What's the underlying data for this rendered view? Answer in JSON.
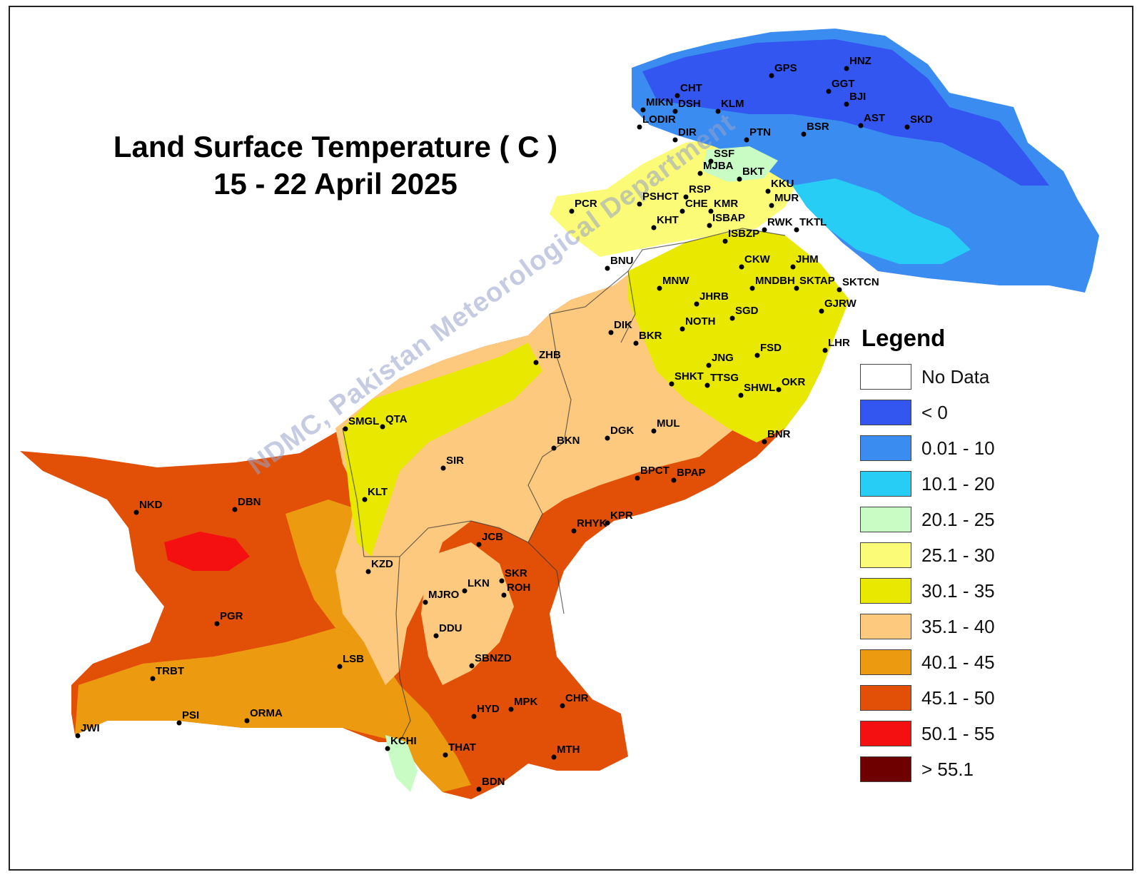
{
  "title": {
    "line1": "Land Surface Temperature ( C )",
    "line2": "15 - 22 April 2025"
  },
  "watermark": "NDMC, Pakistan Meteorological Department",
  "legend": {
    "title": "Legend",
    "items": [
      {
        "label": "No Data",
        "color": "#ffffff"
      },
      {
        "label": "< 0",
        "color": "#3355f0"
      },
      {
        "label": "0.01 - 10",
        "color": "#3a8cf0"
      },
      {
        "label": "10.1 - 20",
        "color": "#28cdf5"
      },
      {
        "label": "20.1 - 25",
        "color": "#c8fcc4"
      },
      {
        "label": "25.1 - 30",
        "color": "#fbfb78"
      },
      {
        "label": "30.1 - 35",
        "color": "#e8e800"
      },
      {
        "label": "35.1 - 40",
        "color": "#fdc97e"
      },
      {
        "label": "40.1 - 45",
        "color": "#ec9a10"
      },
      {
        "label": "45.1 - 50",
        "color": "#e25008"
      },
      {
        "label": "50.1 - 55",
        "color": "#f41010"
      },
      {
        "label": "> 55.1",
        "color": "#6e0000"
      }
    ]
  },
  "stations": [
    "HNZ",
    "GPS",
    "GGT",
    "BJI",
    "AST",
    "SKD",
    "CHT",
    "DSH",
    "KLM",
    "MIKN",
    "LODIR",
    "DIR",
    "PTN",
    "BSR",
    "SSF",
    "MJBA",
    "BKT",
    "KKU",
    "MUR",
    "PCR",
    "PSHCT",
    "RSP",
    "CHE",
    "KMR",
    "ISBAP",
    "RWK",
    "TKTL",
    "KHT",
    "ISBZP",
    "BNU",
    "CKW",
    "JHM",
    "MNW",
    "MNDBH",
    "SKTAP",
    "SKTCN",
    "JHRB",
    "GJRW",
    "NOTH",
    "SGD",
    "DIK",
    "BKR",
    "LHR",
    "FSD",
    "ZHB",
    "JNG",
    "SHKT",
    "TTSG",
    "SHWL",
    "OKR",
    "SMGL",
    "QTA",
    "MUL",
    "DGK",
    "BKN",
    "BNR",
    "SIR",
    "BPCT",
    "BPAP",
    "KLT",
    "NKD",
    "DBN",
    "RHYK",
    "KPR",
    "JCB",
    "KZD",
    "SKR",
    "LKN",
    "ROH",
    "MJRO",
    "PGR",
    "DDU",
    "LSB",
    "SBNZD",
    "TRBT",
    "CHR",
    "HYD",
    "MPK",
    "PSI",
    "ORMA",
    "JWI",
    "KCHI",
    "THAT",
    "MTH",
    "BDN"
  ]
}
